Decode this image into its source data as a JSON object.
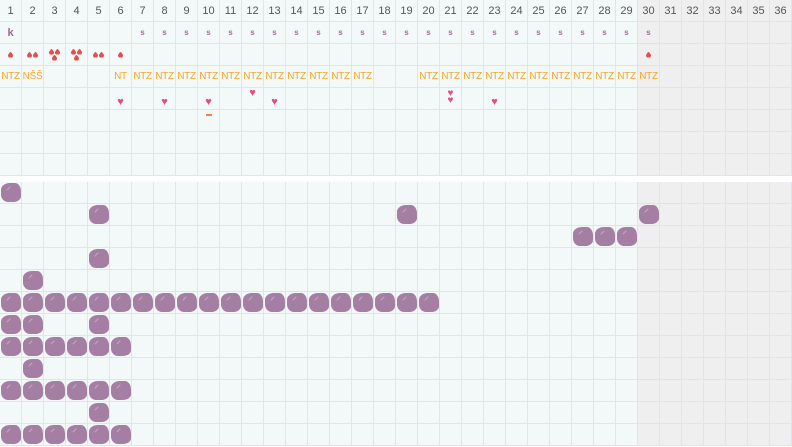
{
  "days": [
    1,
    2,
    3,
    4,
    5,
    6,
    7,
    8,
    9,
    10,
    11,
    12,
    13,
    14,
    15,
    16,
    17,
    18,
    19,
    20,
    21,
    22,
    23,
    24,
    25,
    26,
    27,
    28,
    29,
    30,
    31,
    32,
    33,
    34,
    35,
    36
  ],
  "shaded_from_day": 30,
  "colors": {
    "blob": "#a57ea3",
    "drop": "#e05050",
    "heart": "#e0507a",
    "label": "#f5a623",
    "grid": "#d5e9f1"
  },
  "marker_row": {
    "1": "k",
    "7": "s",
    "8": "s",
    "9": "s",
    "10": "s",
    "11": "s",
    "12": "s",
    "13": "s",
    "14": "s",
    "15": "s",
    "16": "s",
    "17": "s",
    "18": "s",
    "19": "s",
    "20": "s",
    "21": "s",
    "22": "s",
    "23": "s",
    "24": "s",
    "25": "s",
    "26": "s",
    "27": "s",
    "28": "s",
    "29": "s",
    "30": "s"
  },
  "drop_row": {
    "1": 1,
    "2": 2,
    "3": 3,
    "4": 3,
    "5": 2,
    "6": 1,
    "30": 1
  },
  "label_row": {
    "1": "NTZ",
    "2": "NŠŠ",
    "6": "NT",
    "7": "NTZ",
    "8": "NTZ",
    "9": "NTZ",
    "10": "NTZ",
    "11": "NTZ",
    "12": "NTZ",
    "13": "NTZ",
    "14": "NTZ",
    "15": "NTZ",
    "16": "NTZ",
    "17": "NTZ",
    "20": "NTZ",
    "21": "NTZ",
    "22": "NTZ",
    "23": "NTZ",
    "24": "NTZ",
    "25": "NTZ",
    "26": "NTZ",
    "27": "NTZ",
    "28": "NTZ",
    "29": "NTZ",
    "30": "NTZ"
  },
  "heart_row": {
    "6": "low",
    "8": "low",
    "10": "low",
    "12": "high",
    "13": "low",
    "21": "double",
    "23": "low"
  },
  "dash_row": {
    "10": "–"
  },
  "blob_rows": [
    [
      1
    ],
    [
      5,
      19,
      30
    ],
    [
      27,
      28,
      29
    ],
    [
      5
    ],
    [
      2
    ],
    [
      1,
      2,
      3,
      4,
      5,
      6,
      7,
      8,
      9,
      10,
      11,
      12,
      13,
      14,
      15,
      16,
      17,
      18,
      19,
      20
    ],
    [
      1,
      2,
      5
    ],
    [
      1,
      2,
      3,
      4,
      5,
      6
    ],
    [
      2
    ],
    [
      1,
      2,
      3,
      4,
      5,
      6
    ],
    [
      5
    ],
    [
      1,
      2,
      3,
      4,
      5,
      6
    ]
  ]
}
